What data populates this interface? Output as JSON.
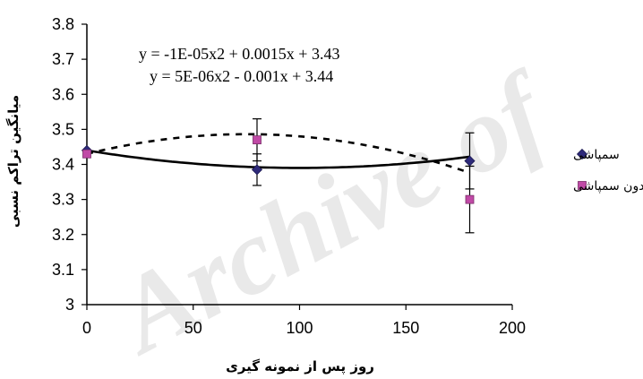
{
  "watermark": "Archive of",
  "chart_data": {
    "type": "scatter",
    "title": "",
    "xlabel": "روز پس از نمونه گیری",
    "ylabel": "میانگین تراکم نسبی",
    "xlim": [
      0,
      200
    ],
    "ylim": [
      3.0,
      3.8
    ],
    "x_ticks": [
      "0",
      "50",
      "100",
      "150",
      "200"
    ],
    "y_ticks": [
      "3",
      "3.1",
      "3.2",
      "3.3",
      "3.4",
      "3.5",
      "3.6",
      "3.7",
      "3.8"
    ],
    "grid": false,
    "legend_position": "right",
    "equations": [
      "y = -1E-05x2 + 0.0015x + 3.43",
      "y = 5E-06x2 - 0.001x + 3.44"
    ],
    "series": [
      {
        "name": "سمپاشی",
        "marker": "diamond",
        "color": "#2e2a7a",
        "points": [
          {
            "x": 0,
            "y": 3.44,
            "err": 0.0
          },
          {
            "x": 80,
            "y": 3.385,
            "err": 0.045
          },
          {
            "x": 180,
            "y": 3.41,
            "err": 0.08
          }
        ],
        "trendline": {
          "a": 5e-06,
          "b": -0.001,
          "c": 3.44,
          "style": "solid"
        }
      },
      {
        "name": "بدون سمپاشی",
        "marker": "square",
        "color": "#c04aa6",
        "points": [
          {
            "x": 0,
            "y": 3.43,
            "err": 0.0
          },
          {
            "x": 80,
            "y": 3.47,
            "err": 0.06
          },
          {
            "x": 180,
            "y": 3.3,
            "err": 0.095
          }
        ],
        "trendline": {
          "a": -1e-05,
          "b": 0.0015,
          "c": 3.43,
          "style": "dashed"
        }
      }
    ]
  }
}
